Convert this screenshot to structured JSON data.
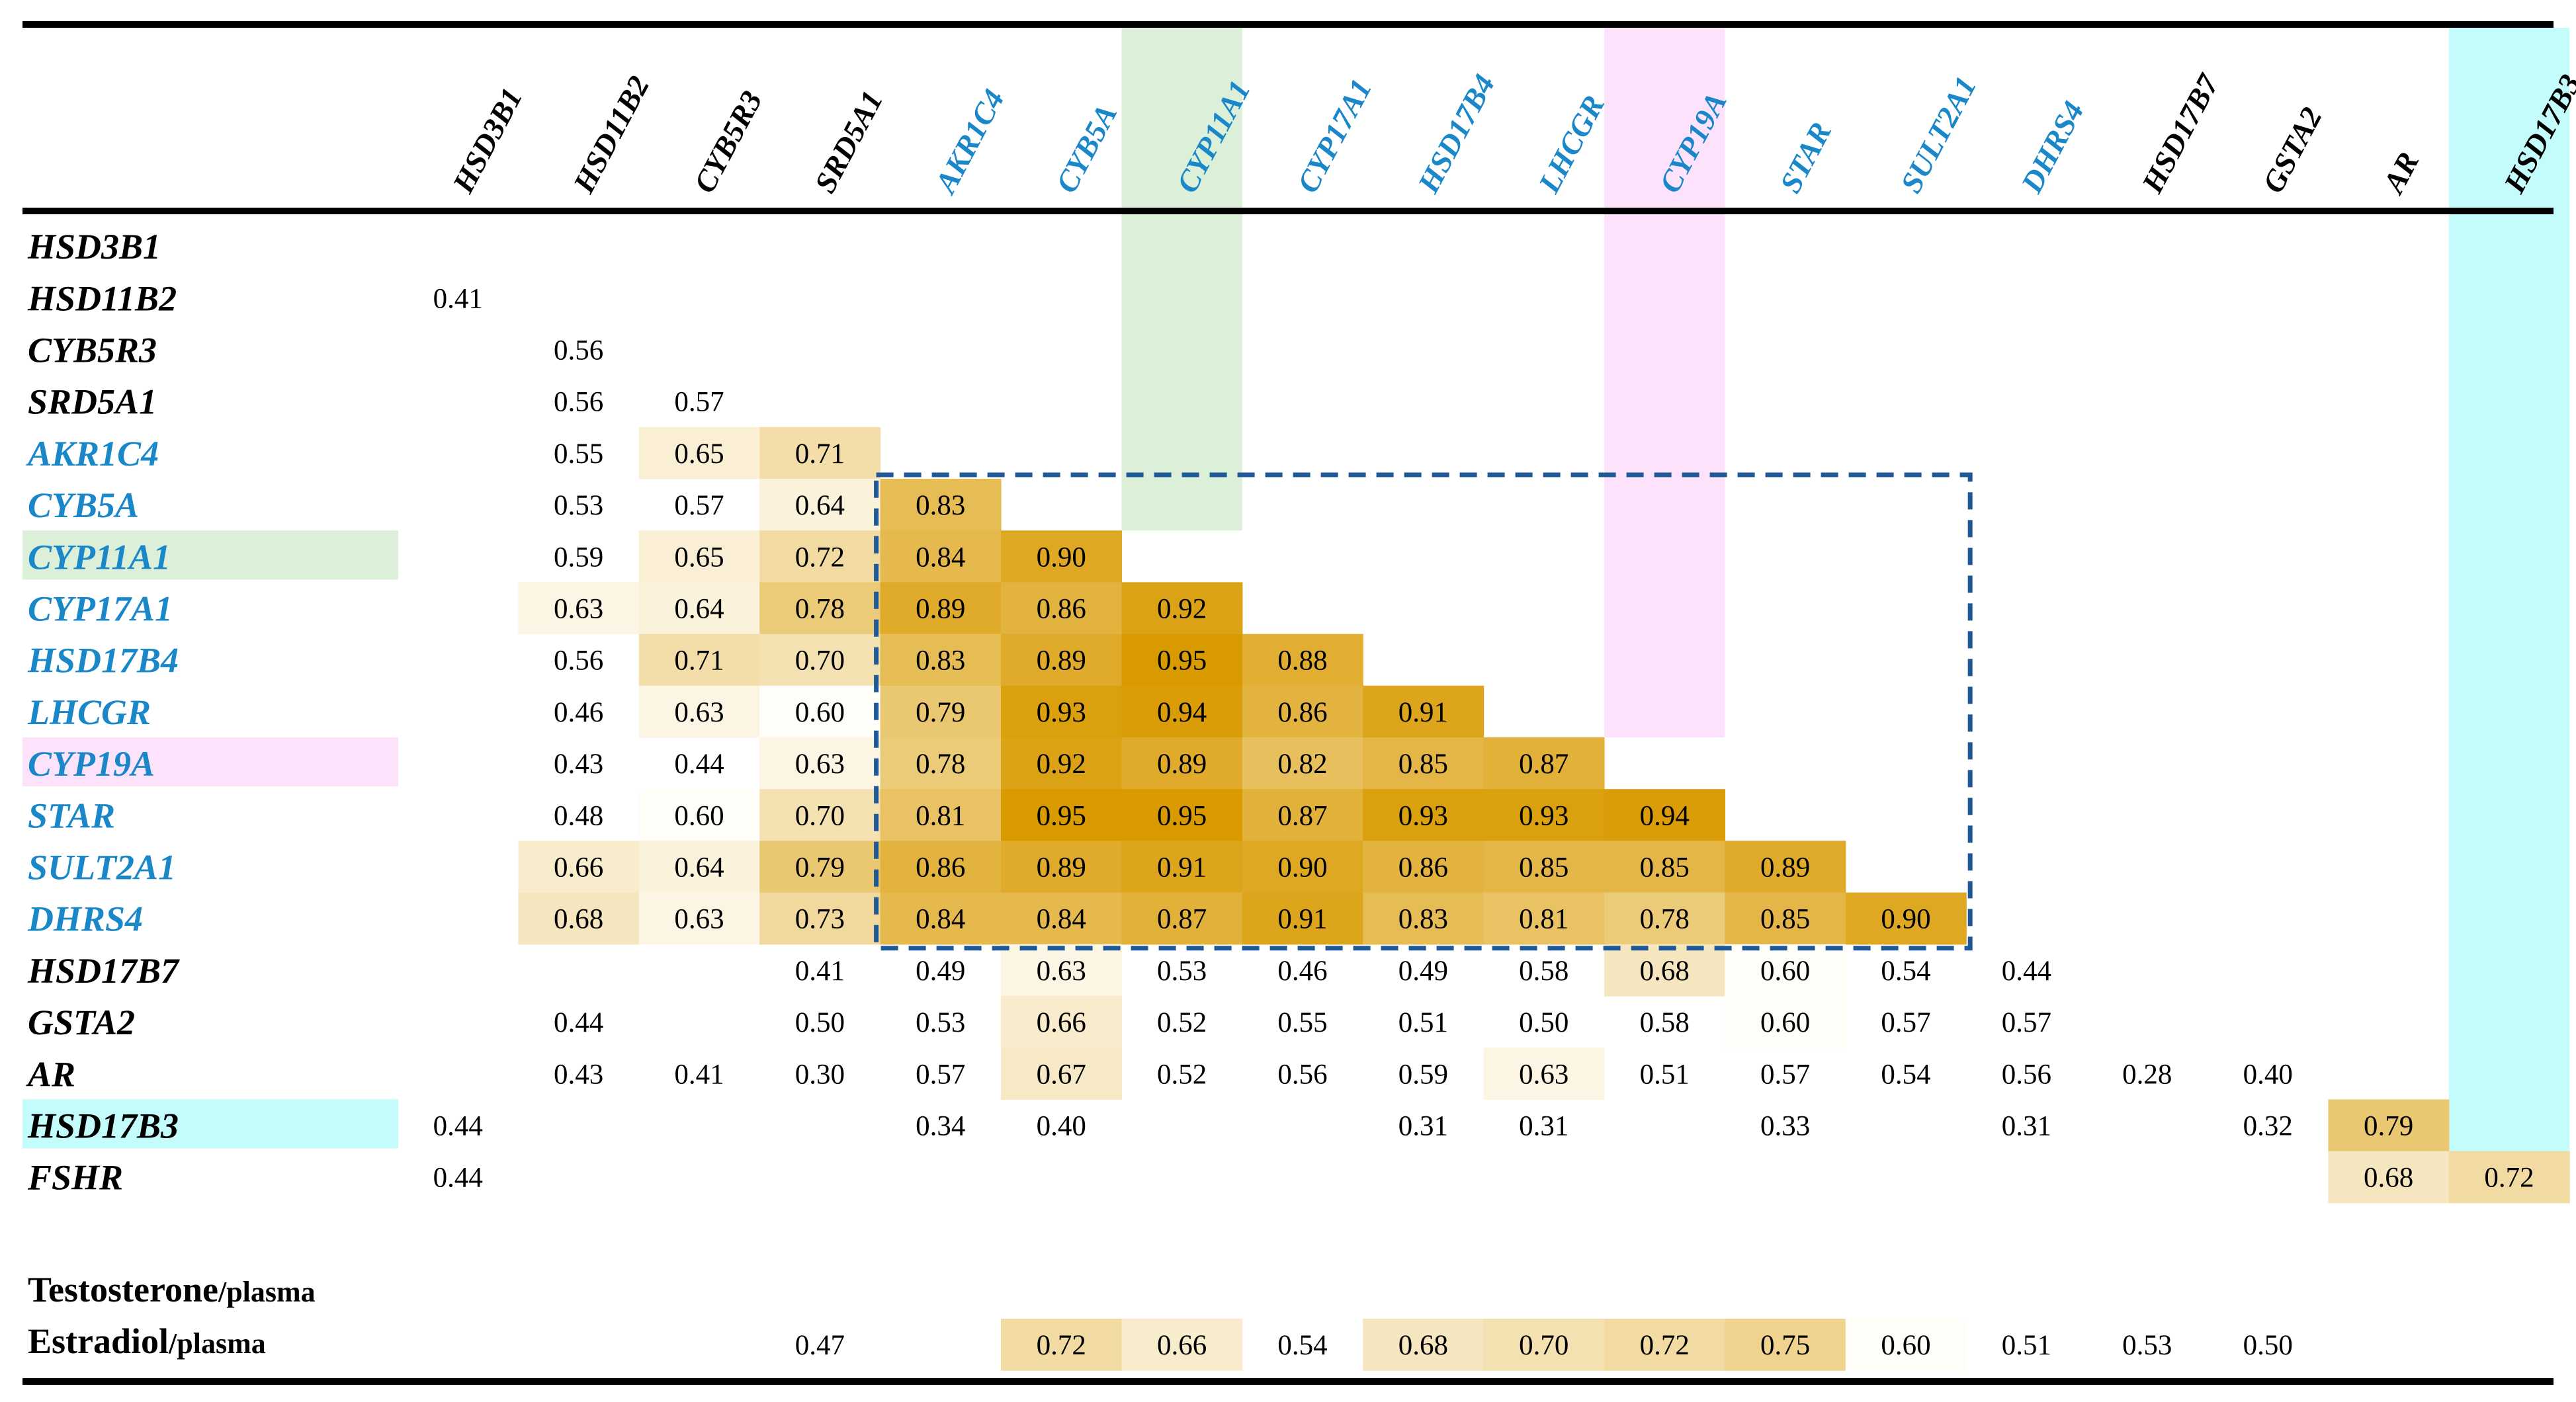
{
  "chart_data": {
    "type": "heatmap",
    "title": "",
    "columns": [
      "HSD3B1",
      "HSD11B2",
      "CYB5R3",
      "SRD5A1",
      "AKR1C4",
      "CYB5A",
      "CYP11A1",
      "CYP17A1",
      "HSD17B4",
      "LHCGR",
      "CYP19A",
      "STAR",
      "SULT2A1",
      "DHRS4",
      "HSD17B7",
      "GSTA2",
      "AR",
      "HSD17B3"
    ],
    "rows": [
      "HSD3B1",
      "HSD11B2",
      "CYB5R3",
      "SRD5A1",
      "AKR1C4",
      "CYB5A",
      "CYP11A1",
      "CYP17A1",
      "HSD17B4",
      "LHCGR",
      "CYP19A",
      "STAR",
      "SULT2A1",
      "DHRS4",
      "HSD17B7",
      "GSTA2",
      "AR",
      "HSD17B3",
      "FSHR"
    ],
    "highlighted_genes": [
      "AKR1C4",
      "CYB5A",
      "CYP11A1",
      "CYP17A1",
      "HSD17B4",
      "LHCGR",
      "CYP19A",
      "STAR",
      "SULT2A1",
      "DHRS4"
    ],
    "highlight_colors": {
      "CYP11A1": "#dcefd9",
      "CYP19A": "#fce3fb",
      "HSD17B3": "#c4fbfb"
    },
    "gene_label_color": "#1a87c9",
    "cells": [
      [
        "",
        "",
        "",
        "",
        "",
        "",
        "",
        "",
        "",
        "",
        "",
        "",
        "",
        "",
        "",
        "",
        "",
        ""
      ],
      [
        "0.41",
        "",
        "",
        "",
        "",
        "",
        "",
        "",
        "",
        "",
        "",
        "",
        "",
        "",
        "",
        "",
        "",
        ""
      ],
      [
        "",
        "0.56",
        "",
        "",
        "",
        "",
        "",
        "",
        "",
        "",
        "",
        "",
        "",
        "",
        "",
        "",
        "",
        ""
      ],
      [
        "",
        "0.56",
        "0.57",
        "",
        "",
        "",
        "",
        "",
        "",
        "",
        "",
        "",
        "",
        "",
        "",
        "",
        "",
        ""
      ],
      [
        "",
        "0.55",
        "0.65",
        "0.71",
        "",
        "",
        "",
        "",
        "",
        "",
        "",
        "",
        "",
        "",
        "",
        "",
        "",
        ""
      ],
      [
        "",
        "0.53",
        "0.57",
        "0.64",
        "0.83",
        "",
        "",
        "",
        "",
        "",
        "",
        "",
        "",
        "",
        "",
        "",
        "",
        ""
      ],
      [
        "",
        "0.59",
        "0.65",
        "0.72",
        "0.84",
        "0.90",
        "",
        "",
        "",
        "",
        "",
        "",
        "",
        "",
        "",
        "",
        "",
        ""
      ],
      [
        "",
        "0.63",
        "0.64",
        "0.78",
        "0.89",
        "0.86",
        "0.92",
        "",
        "",
        "",
        "",
        "",
        "",
        "",
        "",
        "",
        "",
        ""
      ],
      [
        "",
        "0.56",
        "0.71",
        "0.70",
        "0.83",
        "0.89",
        "0.95",
        "0.88",
        "",
        "",
        "",
        "",
        "",
        "",
        "",
        "",
        "",
        ""
      ],
      [
        "",
        "0.46",
        "0.63",
        "0.60",
        "0.79",
        "0.93",
        "0.94",
        "0.86",
        "0.91",
        "",
        "",
        "",
        "",
        "",
        "",
        "",
        "",
        ""
      ],
      [
        "",
        "0.43",
        "0.44",
        "0.63",
        "0.78",
        "0.92",
        "0.89",
        "0.82",
        "0.85",
        "0.87",
        "",
        "",
        "",
        "",
        "",
        "",
        "",
        ""
      ],
      [
        "",
        "0.48",
        "0.60",
        "0.70",
        "0.81",
        "0.95",
        "0.95",
        "0.87",
        "0.93",
        "0.93",
        "0.94",
        "",
        "",
        "",
        "",
        "",
        "",
        ""
      ],
      [
        "",
        "0.66",
        "0.64",
        "0.79",
        "0.86",
        "0.89",
        "0.91",
        "0.90",
        "0.86",
        "0.85",
        "0.85",
        "0.89",
        "",
        "",
        "",
        "",
        "",
        ""
      ],
      [
        "",
        "0.68",
        "0.63",
        "0.73",
        "0.84",
        "0.84",
        "0.87",
        "0.91",
        "0.83",
        "0.81",
        "0.78",
        "0.85",
        "0.90",
        "",
        "",
        "",
        "",
        ""
      ],
      [
        "",
        "",
        "",
        "0.41",
        "0.49",
        "0.63",
        "0.53",
        "0.46",
        "0.49",
        "0.58",
        "0.68",
        "0.60",
        "0.54",
        "0.44",
        "",
        "",
        "",
        ""
      ],
      [
        "",
        "0.44",
        "",
        "0.50",
        "0.53",
        "0.66",
        "0.52",
        "0.55",
        "0.51",
        "0.50",
        "0.58",
        "0.60",
        "0.57",
        "0.57",
        "",
        "",
        "",
        ""
      ],
      [
        "",
        "0.43",
        "0.41",
        "0.30",
        "0.57",
        "0.67",
        "0.52",
        "0.56",
        "0.59",
        "0.63",
        "0.51",
        "0.57",
        "0.54",
        "0.56",
        "0.28",
        "0.40",
        "",
        ""
      ],
      [
        "0.44",
        "",
        "",
        "",
        "0.34",
        "0.40",
        "",
        "",
        "0.31",
        "0.31",
        "",
        "0.33",
        "",
        "0.31",
        "",
        "0.32",
        "0.79",
        ""
      ],
      [
        "0.44",
        "",
        "",
        "",
        "",
        "",
        "",
        "",
        "",
        "",
        "",
        "",
        "",
        "",
        "",
        "",
        "0.68",
        "0.72"
      ]
    ],
    "plasma_rows": [
      {
        "gene": "Testosterone",
        "unit": "/plasma",
        "cells": [
          "",
          "",
          "",
          "",
          "",
          "",
          "",
          "",
          "",
          "",
          "",
          "",
          "",
          "",
          "",
          "",
          "",
          ""
        ]
      },
      {
        "gene": "Estradiol",
        "unit": "/plasma",
        "cells": [
          "",
          "",
          "",
          "0.47",
          "",
          "0.72",
          "0.66",
          "0.54",
          "0.68",
          "0.70",
          "0.72",
          "0.75",
          "0.60",
          "0.51",
          "0.53",
          "0.50",
          "",
          ""
        ]
      }
    ],
    "color_scale": {
      "min": 0.6,
      "max": 0.95,
      "low_color": "#fffdf8",
      "high_color": "#d99a00",
      "below_min": "none"
    },
    "boxed_block": {
      "rows": [
        "CYB5A",
        "DHRS4"
      ],
      "columns": [
        "AKR1C4",
        "SULT2A1"
      ],
      "color": "#1f5896",
      "style": "dashed"
    }
  }
}
